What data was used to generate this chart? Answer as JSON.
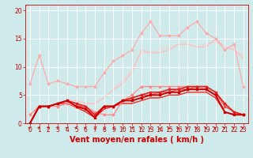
{
  "bg_color": "#ceeaea",
  "grid_color": "#ffffff",
  "xlabel": "Vent moyen/en rafales ( km/h )",
  "xlabel_color": "#cc0000",
  "xlabel_fontsize": 7,
  "tick_color": "#cc0000",
  "tick_fontsize": 5.5,
  "ylim": [
    0,
    21
  ],
  "xlim": [
    -0.5,
    23.5
  ],
  "yticks": [
    0,
    5,
    10,
    15,
    20
  ],
  "xticks": [
    0,
    1,
    2,
    3,
    4,
    5,
    6,
    7,
    8,
    9,
    10,
    11,
    12,
    13,
    14,
    15,
    16,
    17,
    18,
    19,
    20,
    21,
    22,
    23
  ],
  "lines": [
    {
      "x": [
        0,
        1,
        2,
        3,
        4,
        5,
        6,
        7,
        8,
        9,
        10,
        11,
        12,
        13,
        14,
        15,
        16,
        17,
        18,
        19,
        20,
        21,
        22,
        23
      ],
      "y": [
        7,
        12,
        7,
        7.5,
        7,
        6.5,
        6.5,
        6.5,
        9,
        11,
        12,
        13,
        16,
        18,
        15.5,
        15.5,
        15.5,
        17,
        18,
        16,
        15,
        13,
        14,
        6.5
      ],
      "color": "#ffaaaa",
      "lw": 0.9,
      "marker": "D",
      "ms": 1.5,
      "zorder": 2
    },
    {
      "x": [
        0,
        1,
        2,
        3,
        4,
        5,
        6,
        7,
        8,
        9,
        10,
        11,
        12,
        13,
        14,
        15,
        16,
        17,
        18,
        19,
        20,
        21,
        22,
        23
      ],
      "y": [
        1.5,
        3,
        3,
        3,
        3.5,
        3,
        3,
        2,
        1.5,
        1.5,
        4,
        5,
        6.5,
        6.5,
        6.5,
        6.5,
        6.5,
        6.5,
        6.5,
        6,
        5,
        3.5,
        2,
        1.5
      ],
      "color": "#ff8888",
      "lw": 0.9,
      "marker": "D",
      "ms": 1.5,
      "zorder": 3
    },
    {
      "x": [
        0,
        1,
        2,
        3,
        4,
        5,
        6,
        7,
        8,
        9,
        10,
        11,
        12,
        13,
        14,
        15,
        16,
        17,
        18,
        19,
        20,
        21,
        22,
        23
      ],
      "y": [
        0,
        3,
        3,
        3.5,
        4,
        3.5,
        3,
        1.5,
        3,
        3,
        4,
        4.5,
        5,
        5.5,
        5.5,
        6,
        6,
        6.5,
        6.5,
        6.5,
        5.5,
        3.5,
        2,
        1.5
      ],
      "color": "#dd2222",
      "lw": 1.2,
      "marker": "s",
      "ms": 1.5,
      "zorder": 4
    },
    {
      "x": [
        0,
        1,
        2,
        3,
        4,
        5,
        6,
        7,
        8,
        9,
        10,
        11,
        12,
        13,
        14,
        15,
        16,
        17,
        18,
        19,
        20,
        21,
        22,
        23
      ],
      "y": [
        0,
        3,
        3,
        3.5,
        4,
        3.5,
        2.5,
        1.5,
        3,
        3,
        4,
        4.5,
        5,
        5,
        5.5,
        5.5,
        6,
        6,
        6.5,
        6.5,
        5.5,
        3,
        2,
        1.5
      ],
      "color": "#ff4444",
      "lw": 0.9,
      "marker": "s",
      "ms": 1.5,
      "zorder": 3
    },
    {
      "x": [
        0,
        1,
        2,
        3,
        4,
        5,
        6,
        7,
        8,
        9,
        10,
        11,
        12,
        13,
        14,
        15,
        16,
        17,
        18,
        19,
        20,
        21,
        22,
        23
      ],
      "y": [
        0,
        3,
        3,
        3.5,
        4,
        3,
        2.5,
        1,
        3,
        3,
        4,
        4,
        4.5,
        5,
        5,
        5.5,
        5.5,
        6,
        6,
        6,
        5,
        2,
        1.5,
        1.5
      ],
      "color": "#cc0000",
      "lw": 1.4,
      "marker": "s",
      "ms": 1.5,
      "zorder": 5
    },
    {
      "x": [
        0,
        1,
        2,
        3,
        4,
        5,
        6,
        7,
        8,
        9,
        10,
        11,
        12,
        13,
        14,
        15,
        16,
        17,
        18,
        19,
        20,
        21,
        22,
        23
      ],
      "y": [
        0,
        3,
        3,
        3.5,
        3.5,
        2.8,
        2,
        1,
        2.5,
        3,
        3.5,
        3.5,
        4,
        4.5,
        4.5,
        5,
        5,
        5.5,
        5.5,
        5.5,
        4.5,
        2,
        1.5,
        1.5
      ],
      "color": "#ff2222",
      "lw": 0.8,
      "marker": null,
      "ms": 0,
      "zorder": 2
    },
    {
      "x": [
        0,
        1,
        2,
        3,
        4,
        5,
        6,
        7,
        8,
        9,
        10,
        11,
        12,
        13,
        14,
        15,
        16,
        17,
        18,
        19,
        20,
        21,
        22,
        23
      ],
      "y": [
        0,
        3,
        3,
        3.5,
        3.5,
        3,
        2,
        1,
        2.5,
        3,
        3.5,
        3.5,
        4,
        4.5,
        4.5,
        5,
        5,
        5.5,
        5.5,
        5.5,
        4.5,
        2,
        1.5,
        1.5
      ],
      "color": "#ee3333",
      "lw": 0.7,
      "marker": null,
      "ms": 0,
      "zorder": 2
    },
    {
      "x": [
        0,
        1,
        2,
        3,
        4,
        5,
        6,
        7,
        8,
        9,
        10,
        11,
        12,
        13,
        14,
        15,
        16,
        17,
        18,
        19,
        20,
        21,
        22,
        23
      ],
      "y": [
        1.5,
        3,
        3,
        3.5,
        4,
        4,
        3.5,
        3.5,
        4.5,
        6,
        7.5,
        9.5,
        12.5,
        12.5,
        13,
        13.5,
        14,
        14,
        13.5,
        14,
        14.5,
        13.5,
        13,
        12
      ],
      "color": "#ffcccc",
      "lw": 0.8,
      "marker": null,
      "ms": 0,
      "zorder": 1
    },
    {
      "x": [
        0,
        1,
        2,
        3,
        4,
        5,
        6,
        7,
        8,
        9,
        10,
        11,
        12,
        13,
        14,
        15,
        16,
        17,
        18,
        19,
        20,
        21,
        22,
        23
      ],
      "y": [
        1.5,
        3,
        3,
        3.5,
        4,
        4,
        3.5,
        3.5,
        4.5,
        6,
        7,
        9,
        13,
        12.5,
        12.5,
        13,
        14,
        14,
        13.5,
        13.5,
        15,
        13.5,
        13,
        11.5
      ],
      "color": "#ffbbbb",
      "lw": 0.8,
      "marker": null,
      "ms": 0,
      "zorder": 1
    }
  ],
  "arrow_color": "#cc0000",
  "arrow_angles": [
    135,
    135,
    135,
    135,
    135,
    135,
    135,
    90,
    90,
    60,
    60,
    45,
    90,
    90,
    90,
    90,
    120,
    120,
    135,
    135,
    135,
    135,
    135,
    135
  ]
}
